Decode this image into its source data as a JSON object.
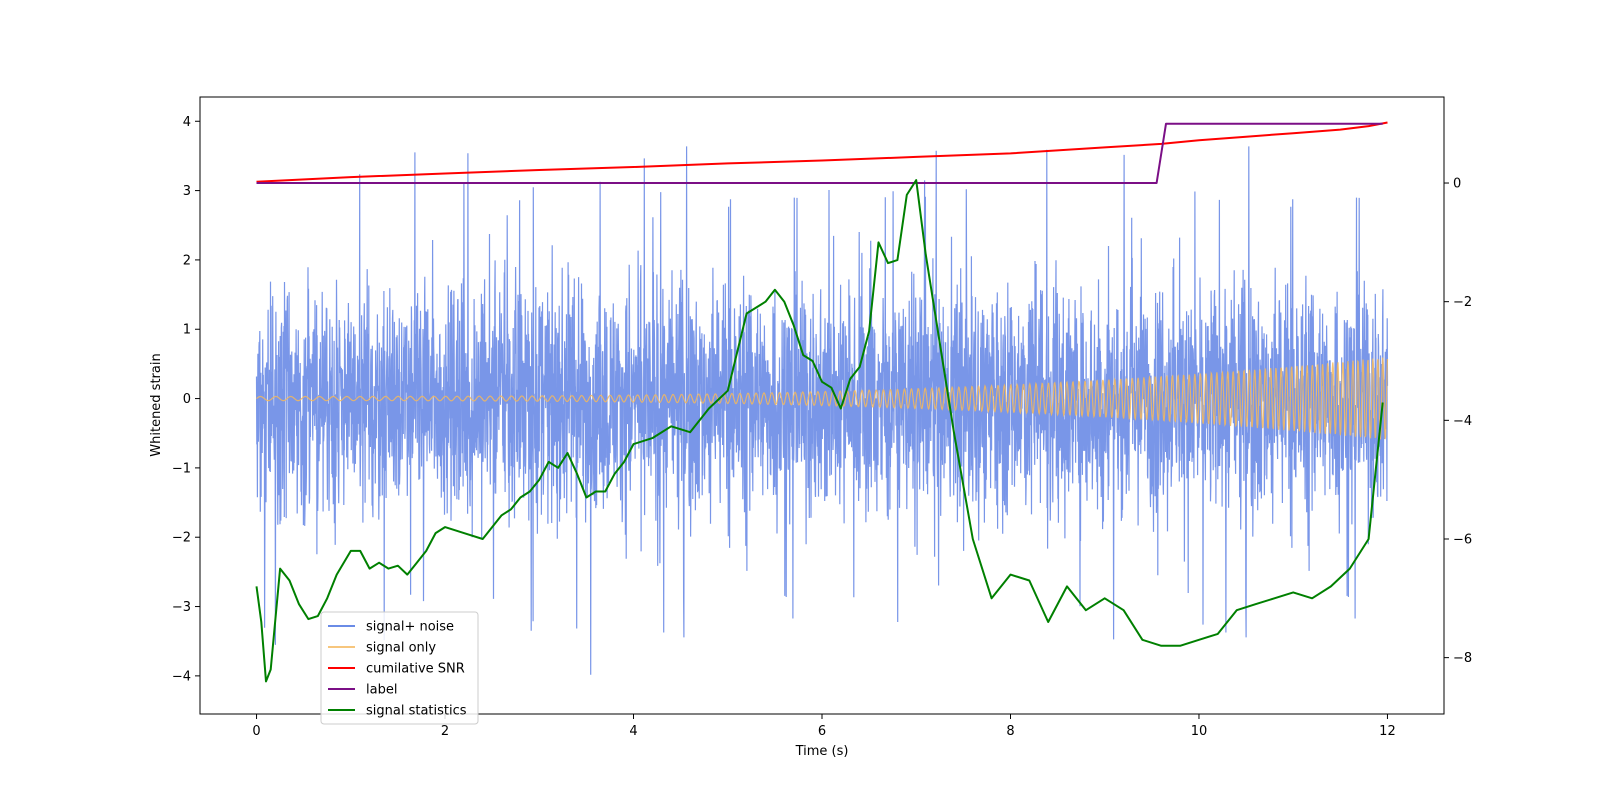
{
  "chart_data": {
    "type": "line",
    "title": "",
    "xlabel": "Time (s)",
    "ylabel": "Whitened strain",
    "y2label": "",
    "xlim": [
      -0.6,
      12.6
    ],
    "ylim": [
      -4.55,
      4.35
    ],
    "y2lim": [
      -8.95,
      1.45
    ],
    "grid": false,
    "legend_position": "lower-left",
    "x_ticks": [
      0,
      2,
      4,
      6,
      8,
      10,
      12
    ],
    "x_tick_labels": [
      "0",
      "2",
      "4",
      "6",
      "8",
      "10",
      "12"
    ],
    "y_ticks": [
      -4,
      -3,
      -2,
      -1,
      0,
      1,
      2,
      3,
      4
    ],
    "y_tick_labels": [
      "−4",
      "−3",
      "−2",
      "−1",
      "0",
      "1",
      "2",
      "3",
      "4"
    ],
    "y2_ticks": [
      -8,
      -6,
      -4,
      -2,
      0
    ],
    "y2_tick_labels": [
      "−8",
      "−6",
      "−4",
      "−2",
      "0"
    ],
    "series": [
      {
        "name": "signal+ noise",
        "color": "#6a8be6",
        "axis": "left",
        "kind": "noise band",
        "t_range": [
          0,
          12
        ],
        "typical_range": [
          -1.3,
          1.3
        ],
        "peak_range": [
          -4.2,
          3.95
        ]
      },
      {
        "name": "signal only",
        "color": "#f5b85c",
        "axis": "left",
        "kind": "chirp",
        "t_range": [
          0,
          12
        ],
        "amplitude_start": 0.03,
        "amplitude_end": 0.6
      },
      {
        "name": "cumilative SNR",
        "color": "#ff0000",
        "axis": "right",
        "x": [
          0,
          1,
          2,
          3,
          4,
          5,
          6,
          7,
          8,
          9,
          9.6,
          10,
          10.5,
          11,
          11.5,
          11.8,
          12
        ],
        "values": [
          0.02,
          0.1,
          0.16,
          0.22,
          0.27,
          0.33,
          0.38,
          0.44,
          0.5,
          0.6,
          0.66,
          0.72,
          0.78,
          0.84,
          0.9,
          0.96,
          1.02
        ]
      },
      {
        "name": "label",
        "color": "#7b0f86",
        "axis": "right",
        "x": [
          0,
          9.55,
          9.65,
          11.95
        ],
        "values": [
          0,
          0,
          1,
          1
        ]
      },
      {
        "name": "signal statistics",
        "color": "#008000",
        "axis": "right",
        "x": [
          0,
          0.05,
          0.1,
          0.15,
          0.25,
          0.35,
          0.45,
          0.55,
          0.65,
          0.75,
          0.85,
          1.0,
          1.1,
          1.2,
          1.3,
          1.4,
          1.5,
          1.6,
          1.7,
          1.8,
          1.9,
          2.0,
          2.2,
          2.4,
          2.6,
          2.7,
          2.8,
          2.9,
          3.0,
          3.1,
          3.2,
          3.3,
          3.4,
          3.5,
          3.6,
          3.7,
          3.8,
          3.9,
          4.0,
          4.2,
          4.4,
          4.6,
          4.8,
          5.0,
          5.2,
          5.4,
          5.5,
          5.6,
          5.7,
          5.8,
          5.9,
          6.0,
          6.1,
          6.2,
          6.3,
          6.4,
          6.5,
          6.6,
          6.7,
          6.8,
          6.9,
          7.0,
          7.1,
          7.2,
          7.4,
          7.6,
          7.8,
          8.0,
          8.2,
          8.4,
          8.6,
          8.8,
          9.0,
          9.2,
          9.4,
          9.6,
          9.8,
          10.0,
          10.2,
          10.4,
          10.6,
          10.8,
          11.0,
          11.2,
          11.4,
          11.6,
          11.8,
          11.95
        ],
        "values": [
          -6.8,
          -7.4,
          -8.4,
          -8.2,
          -6.5,
          -6.7,
          -7.1,
          -7.35,
          -7.3,
          -7.0,
          -6.6,
          -6.2,
          -6.2,
          -6.5,
          -6.4,
          -6.5,
          -6.45,
          -6.6,
          -6.4,
          -6.2,
          -5.9,
          -5.8,
          -5.9,
          -6.0,
          -5.6,
          -5.5,
          -5.3,
          -5.2,
          -5.0,
          -4.7,
          -4.8,
          -4.55,
          -4.9,
          -5.3,
          -5.2,
          -5.2,
          -4.9,
          -4.7,
          -4.4,
          -4.3,
          -4.1,
          -4.2,
          -3.8,
          -3.5,
          -2.2,
          -2.0,
          -1.8,
          -2.0,
          -2.4,
          -2.9,
          -3.0,
          -3.35,
          -3.45,
          -3.8,
          -3.3,
          -3.1,
          -2.5,
          -1.0,
          -1.35,
          -1.3,
          -0.2,
          0.05,
          -1.2,
          -2.2,
          -4.2,
          -6.0,
          -7.0,
          -6.6,
          -6.7,
          -7.4,
          -6.8,
          -7.2,
          -7.0,
          -7.2,
          -7.7,
          -7.8,
          -7.8,
          -7.7,
          -7.6,
          -7.2,
          -7.1,
          -7.0,
          -6.9,
          -7.0,
          -6.8,
          -6.5,
          -6.0,
          -3.7
        ]
      }
    ]
  }
}
